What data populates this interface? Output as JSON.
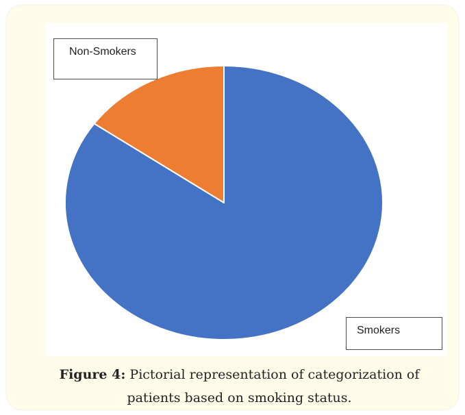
{
  "figure": {
    "label": "Figure 4:",
    "caption": "Pictorial representation of categorization of",
    "caption_line2": "patients based on smoking status."
  },
  "chart_data": {
    "type": "pie",
    "categories": [
      "Smokers",
      "Non-Smokers"
    ],
    "values": [
      84.8,
      15.2
    ],
    "unit": "%",
    "start_angle_deg": 0,
    "direction": "clockwise",
    "colors": [
      "#4472c4",
      "#ed7d31"
    ],
    "slice_border_color": "#ffffff",
    "legend": "callout-boxes",
    "labels": {
      "smokers": "Smokers",
      "non_smokers": "Non-Smokers"
    }
  }
}
